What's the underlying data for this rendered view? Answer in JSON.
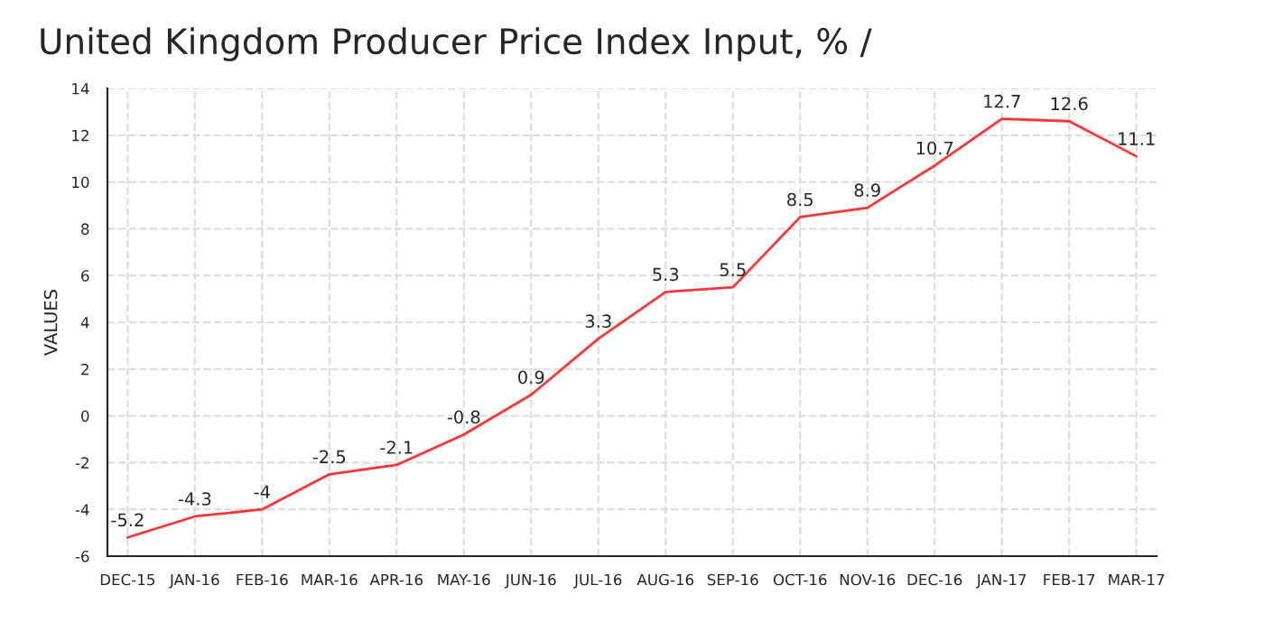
{
  "chart_data": {
    "type": "line",
    "title": "United Kingdom Producer Price Index Input, % /",
    "ylabel": "VALUES",
    "categories": [
      "DEC-15",
      "JAN-16",
      "FEB-16",
      "MAR-16",
      "APR-16",
      "MAY-16",
      "JUN-16",
      "JUL-16",
      "AUG-16",
      "SEP-16",
      "OCT-16",
      "NOV-16",
      "DEC-16",
      "JAN-17",
      "FEB-17",
      "MAR-17"
    ],
    "series": [
      {
        "color": "#ff3333",
        "values": [
          -5.2,
          -4.3,
          -4,
          -2.5,
          -2.1,
          -0.8,
          0.9,
          3.3,
          5.3,
          5.5,
          8.5,
          8.9,
          10.7,
          12.7,
          12.6,
          11.1
        ]
      }
    ],
    "ylim": [
      -6,
      14
    ],
    "yticks": [
      -6,
      -4,
      -2,
      0,
      2,
      4,
      6,
      8,
      10,
      12,
      14
    ],
    "grid": true,
    "data_labels": true,
    "marker": "none",
    "line_style": "solid"
  }
}
